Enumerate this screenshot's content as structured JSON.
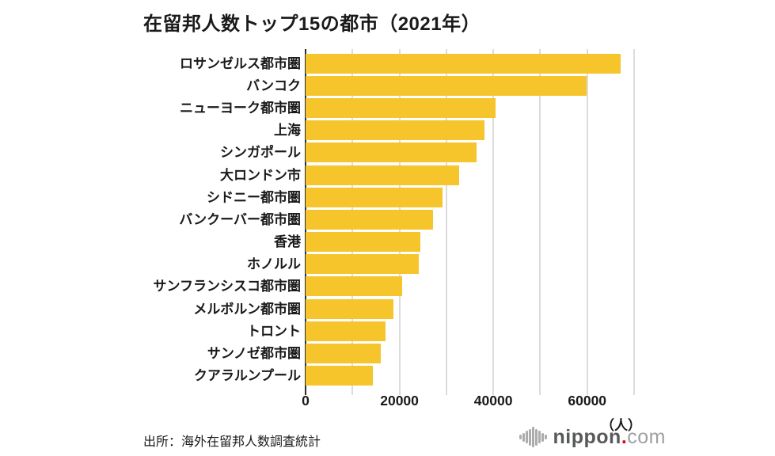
{
  "title": "在留邦人数トップ15の都市（2021年）",
  "source": "出所：海外在留邦人数調査統計",
  "logo": {
    "brand": "nippon",
    "dot": ".",
    "suffix": "com"
  },
  "colors": {
    "bar": "#F5C52B",
    "gridline": "#DCDCDC",
    "axis": "#2A2A2A",
    "text": "#1A1A1A"
  },
  "chart_data": {
    "type": "bar",
    "orientation": "horizontal",
    "title": "在留邦人数トップ15の都市（2021年）",
    "categories": [
      "ロサンゼルス都市圏",
      "バンコク",
      "ニューヨーク都市圏",
      "上海",
      "シンガポール",
      "大ロンドン市",
      "シドニー都市圏",
      "バンクーバー都市圏",
      "香港",
      "ホノルル",
      "サンフランシスコ都市圏",
      "メルボルン都市圏",
      "トロント",
      "サンノゼ都市圏",
      "クアラルンプール"
    ],
    "values": [
      67200,
      59800,
      40400,
      38200,
      36500,
      32700,
      29100,
      27200,
      24400,
      24200,
      20500,
      18800,
      17100,
      16000,
      14300
    ],
    "xlim": [
      0,
      70000
    ],
    "x_ticks": [
      0,
      20000,
      40000,
      60000
    ],
    "gridline_step": 10000,
    "xlabel": "（人）",
    "ylabel": "",
    "grid": true,
    "legend": false,
    "unit": "人"
  }
}
